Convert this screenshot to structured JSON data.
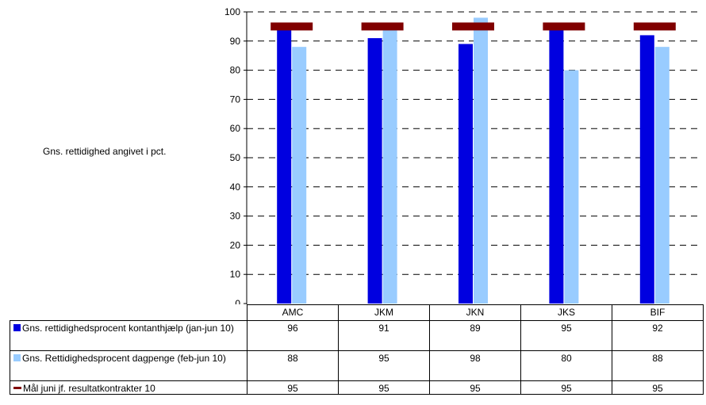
{
  "chart_data": {
    "type": "bar",
    "ylabel": "Gns. rettidighed angivet i pct.",
    "ylim": [
      0,
      100
    ],
    "yticks": [
      0,
      10,
      20,
      30,
      40,
      50,
      60,
      70,
      80,
      90,
      100
    ],
    "grid": true,
    "legend": "table-below",
    "categories": [
      "AMC",
      "JKM",
      "JKN",
      "JKS",
      "BIF"
    ],
    "series": [
      {
        "name": "Gns. rettidighedsprocent kontanthjælp (jan-jun 10)",
        "values": [
          96,
          91,
          89,
          95,
          92
        ],
        "color": "#0000e0",
        "kind": "bar"
      },
      {
        "name": "Gns. Rettidighedsprocent dagpenge (feb-jun 10)",
        "values": [
          88,
          95,
          98,
          80,
          88
        ],
        "color": "#99ccff",
        "kind": "bar"
      },
      {
        "name": "Mål juni jf. resultatkontrakter 10",
        "values": [
          95,
          95,
          95,
          95,
          95
        ],
        "color": "#800000",
        "kind": "marker"
      }
    ]
  }
}
